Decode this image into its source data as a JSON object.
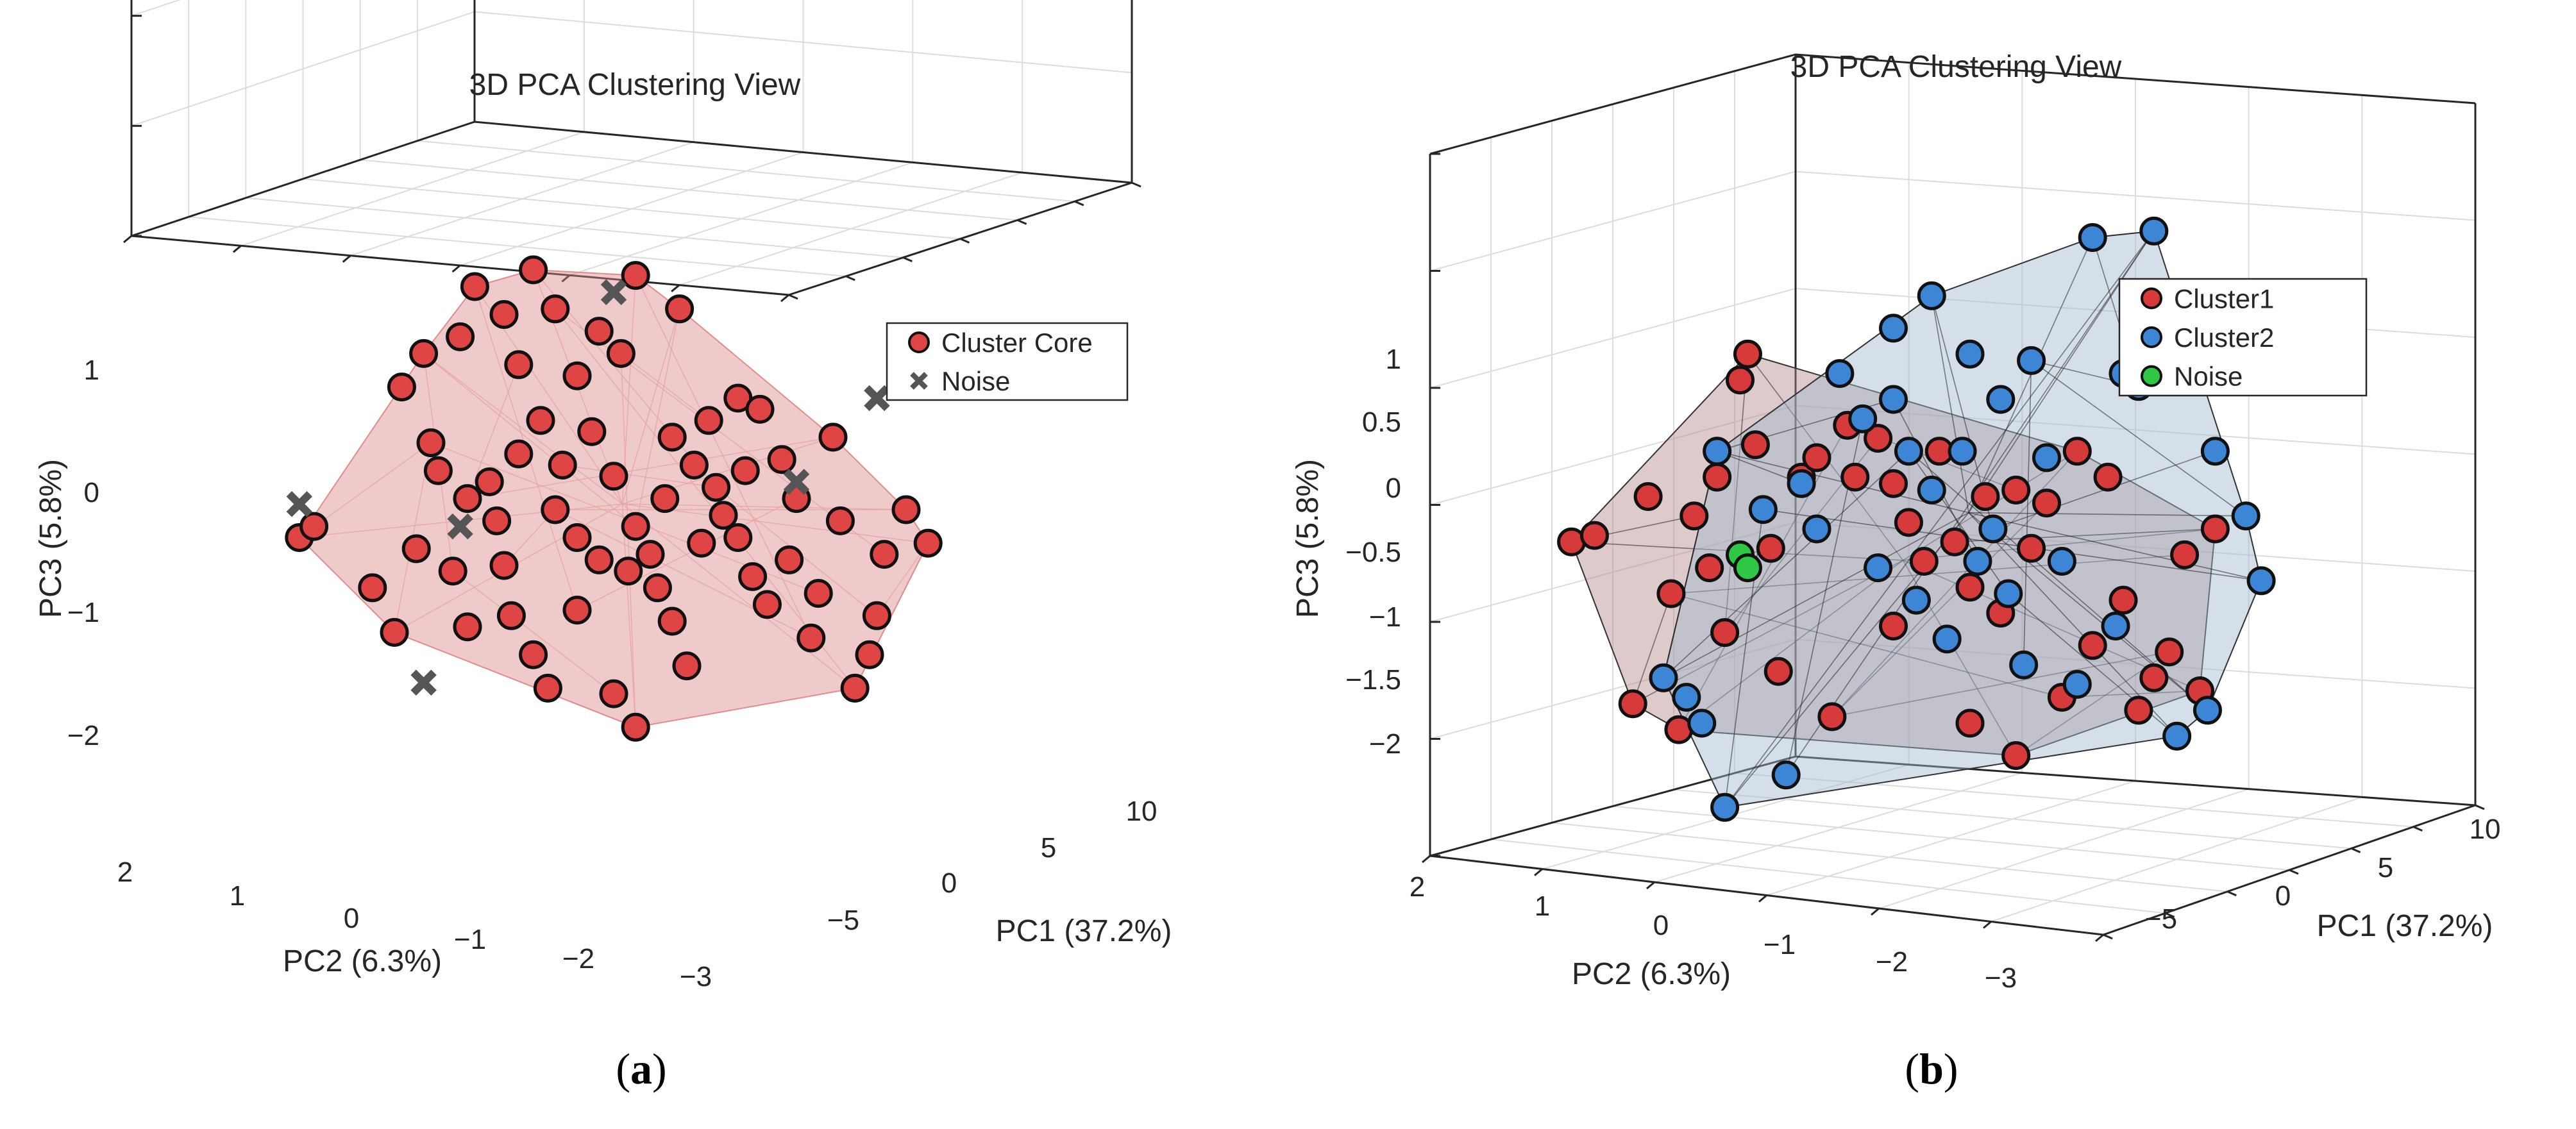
{
  "panels": [
    {
      "id": "a",
      "caption_letter": "a",
      "chart_data": {
        "type": "scatter3d",
        "title": "3D PCA Clustering View",
        "xlabel": "PC1 (37.2%)",
        "ylabel": "PC2 (6.3%)",
        "zlabel": "PC3 (5.8%)",
        "xticks": [
          "−5",
          "0",
          "5",
          "10"
        ],
        "yticks": [
          "2",
          "1",
          "0",
          "−1",
          "−2",
          "−3"
        ],
        "zticks": [
          "−2",
          "−1",
          "0",
          "1"
        ],
        "legend": [
          {
            "label": "Cluster Core",
            "marker": "circle",
            "color": "#e04545"
          },
          {
            "label": "Noise",
            "marker": "x",
            "color": "#555555"
          }
        ],
        "series": [
          {
            "name": "Cluster Core",
            "color": "#e04545",
            "hull_color": "#d98a8a",
            "points": [
              [
                0.12,
                0.45
              ],
              [
                0.14,
                0.47
              ],
              [
                0.22,
                0.36
              ],
              [
                0.25,
                0.28
              ],
              [
                0.28,
                0.43
              ],
              [
                0.3,
                0.62
              ],
              [
                0.31,
                0.57
              ],
              [
                0.33,
                0.39
              ],
              [
                0.35,
                0.29
              ],
              [
                0.39,
                0.48
              ],
              [
                0.4,
                0.4
              ],
              [
                0.41,
                0.31
              ],
              [
                0.44,
                0.24
              ],
              [
                0.46,
                0.18
              ],
              [
                0.5,
                0.32
              ],
              [
                0.53,
                0.41
              ],
              [
                0.55,
                0.17
              ],
              [
                0.58,
                0.11
              ],
              [
                0.61,
                0.36
              ],
              [
                0.63,
                0.3
              ],
              [
                0.65,
                0.22
              ],
              [
                0.69,
                0.54
              ],
              [
                0.7,
                0.49
              ],
              [
                0.72,
                0.45
              ],
              [
                0.74,
                0.38
              ],
              [
                0.76,
                0.33
              ],
              [
                0.78,
                0.59
              ],
              [
                0.8,
                0.52
              ],
              [
                0.82,
                0.27
              ],
              [
                0.85,
                0.63
              ],
              [
                0.88,
                0.18
              ],
              [
                0.9,
                0.24
              ],
              [
                0.92,
                0.42
              ],
              [
                0.62,
                0.52
              ],
              [
                0.66,
                0.58
              ],
              [
                0.58,
                0.47
              ],
              [
                0.55,
                0.56
              ],
              [
                0.52,
                0.64
              ],
              [
                0.48,
                0.58
              ],
              [
                0.45,
                0.66
              ],
              [
                0.42,
                0.6
              ],
              [
                0.38,
                0.55
              ],
              [
                0.35,
                0.52
              ],
              [
                0.68,
                0.66
              ],
              [
                0.72,
                0.7
              ],
              [
                0.75,
                0.68
              ],
              [
                0.6,
                0.42
              ],
              [
                0.57,
                0.39
              ],
              [
                0.5,
                0.45
              ],
              [
                0.47,
                0.5
              ],
              [
                0.63,
                0.63
              ],
              [
                0.67,
                0.44
              ],
              [
                0.73,
                0.57
              ],
              [
                0.79,
                0.41
              ],
              [
                0.83,
                0.35
              ],
              [
                0.86,
                0.48
              ],
              [
                0.91,
                0.31
              ],
              [
                0.95,
                0.5
              ],
              [
                0.98,
                0.44
              ],
              [
                0.26,
                0.72
              ],
              [
                0.29,
                0.78
              ],
              [
                0.34,
                0.81
              ],
              [
                0.4,
                0.85
              ],
              [
                0.47,
                0.86
              ],
              [
                0.53,
                0.82
              ],
              [
                0.36,
                0.9
              ],
              [
                0.44,
                0.93
              ],
              [
                0.58,
                0.92
              ],
              [
                0.64,
                0.86
              ],
              [
                0.5,
                0.74
              ],
              [
                0.56,
                0.78
              ],
              [
                0.42,
                0.76
              ]
            ]
          },
          {
            "name": "Noise",
            "color": "#555555",
            "points": [
              [
                0.29,
                0.19
              ],
              [
                0.34,
                0.47
              ],
              [
                0.55,
                0.89
              ],
              [
                0.91,
                0.7
              ],
              [
                0.12,
                0.51
              ],
              [
                0.8,
                0.55
              ]
            ]
          }
        ]
      }
    },
    {
      "id": "b",
      "caption_letter": "b",
      "chart_data": {
        "type": "scatter3d",
        "title": "3D PCA Clustering View",
        "xlabel": "PC1 (37.2%)",
        "ylabel": "PC2 (6.3%)",
        "zlabel": "PC3 (5.8%)",
        "xticks": [
          "−5",
          "0",
          "5",
          "10"
        ],
        "yticks": [
          "2",
          "1",
          "0",
          "−1",
          "−2",
          "−3"
        ],
        "zticks": [
          "−2",
          "−1.5",
          "−1",
          "−0.5",
          "0",
          "0.5",
          "1"
        ],
        "legend": [
          {
            "label": "Cluster1",
            "marker": "circle",
            "color": "#d63a3a"
          },
          {
            "label": "Cluster2",
            "marker": "circle",
            "color": "#3d86d6"
          },
          {
            "label": "Noise",
            "marker": "circle",
            "color": "#2ec845"
          }
        ],
        "series": [
          {
            "name": "Cluster1",
            "color": "#d63a3a",
            "hull_color": "#b58a8a",
            "points": [
              [
                0.08,
                0.48
              ],
              [
                0.11,
                0.49
              ],
              [
                0.18,
                0.55
              ],
              [
                0.21,
                0.4
              ],
              [
                0.22,
                0.19
              ],
              [
                0.24,
                0.52
              ],
              [
                0.27,
                0.58
              ],
              [
                0.28,
                0.34
              ],
              [
                0.3,
                0.73
              ],
              [
                0.31,
                0.77
              ],
              [
                0.32,
                0.63
              ],
              [
                0.35,
                0.28
              ],
              [
                0.38,
                0.58
              ],
              [
                0.4,
                0.61
              ],
              [
                0.42,
                0.21
              ],
              [
                0.45,
                0.58
              ],
              [
                0.48,
                0.64
              ],
              [
                0.5,
                0.57
              ],
              [
                0.52,
                0.51
              ],
              [
                0.54,
                0.45
              ],
              [
                0.56,
                0.62
              ],
              [
                0.58,
                0.48
              ],
              [
                0.6,
                0.41
              ],
              [
                0.62,
                0.55
              ],
              [
                0.64,
                0.37
              ],
              [
                0.66,
                0.56
              ],
              [
                0.68,
                0.47
              ],
              [
                0.7,
                0.54
              ],
              [
                0.72,
                0.24
              ],
              [
                0.74,
                0.62
              ],
              [
                0.76,
                0.32
              ],
              [
                0.78,
                0.58
              ],
              [
                0.8,
                0.39
              ],
              [
                0.82,
                0.22
              ],
              [
                0.84,
                0.27
              ],
              [
                0.86,
                0.31
              ],
              [
                0.88,
                0.46
              ],
              [
                0.9,
                0.25
              ],
              [
                0.92,
                0.5
              ],
              [
                0.16,
                0.23
              ],
              [
                0.26,
                0.44
              ],
              [
                0.34,
                0.47
              ],
              [
                0.44,
                0.66
              ],
              [
                0.5,
                0.35
              ],
              [
                0.6,
                0.2
              ],
              [
                0.66,
                0.15
              ]
            ]
          },
          {
            "name": "Cluster2",
            "color": "#3d86d6",
            "hull_color": "#9fb7cf",
            "points": [
              [
                0.2,
                0.27
              ],
              [
                0.23,
                0.24
              ],
              [
                0.25,
                0.2
              ],
              [
                0.27,
                0.62
              ],
              [
                0.33,
                0.53
              ],
              [
                0.38,
                0.57
              ],
              [
                0.4,
                0.5
              ],
              [
                0.43,
                0.74
              ],
              [
                0.46,
                0.67
              ],
              [
                0.48,
                0.44
              ],
              [
                0.5,
                0.7
              ],
              [
                0.52,
                0.62
              ],
              [
                0.53,
                0.39
              ],
              [
                0.55,
                0.56
              ],
              [
                0.57,
                0.33
              ],
              [
                0.59,
                0.62
              ],
              [
                0.61,
                0.45
              ],
              [
                0.63,
                0.5
              ],
              [
                0.65,
                0.4
              ],
              [
                0.67,
                0.29
              ],
              [
                0.7,
                0.61
              ],
              [
                0.72,
                0.45
              ],
              [
                0.76,
                0.95
              ],
              [
                0.8,
                0.74
              ],
              [
                0.82,
                0.72
              ],
              [
                0.84,
                0.96
              ],
              [
                0.86,
                0.8
              ],
              [
                0.92,
                0.62
              ],
              [
                0.96,
                0.52
              ],
              [
                0.98,
                0.42
              ],
              [
                0.28,
                0.07
              ],
              [
                0.36,
                0.12
              ],
              [
                0.74,
                0.26
              ],
              [
                0.79,
                0.35
              ],
              [
                0.87,
                0.18
              ],
              [
                0.91,
                0.22
              ],
              [
                0.6,
                0.77
              ],
              [
                0.64,
                0.7
              ],
              [
                0.68,
                0.76
              ],
              [
                0.5,
                0.81
              ],
              [
                0.55,
                0.86
              ]
            ]
          },
          {
            "name": "Noise",
            "color": "#2ec845",
            "points": [
              [
                0.3,
                0.46
              ],
              [
                0.31,
                0.44
              ]
            ]
          }
        ]
      }
    }
  ]
}
